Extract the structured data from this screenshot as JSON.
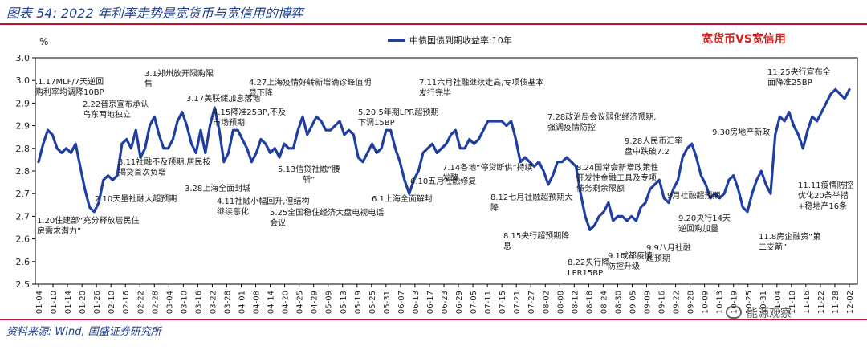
{
  "figure": {
    "title": "图表 54:  2022 年利率走势是宽货币与宽信用的博弈",
    "unit": "%",
    "legend_label": "中债国债到期收益率:10年",
    "subtitle": "宽货币VS宽信用",
    "source": "资料来源:  Wind, 国盛证券研究所",
    "watermark": "能源观察",
    "watermark_icon": "wechat-icon"
  },
  "colors": {
    "line": "#1f3fa0",
    "accent": "#c8102e",
    "subtitle": "#d91f1f"
  },
  "chart_data": {
    "type": "line",
    "ylim": [
      2.5,
      3.0
    ],
    "yticks": [
      "2.5",
      "2.6",
      "2.6",
      "2.7",
      "2.7",
      "2.8",
      "2.8",
      "2.9",
      "2.9",
      "3.0",
      "3.0"
    ],
    "xticks": [
      "01-04",
      "01-10",
      "01-14",
      "01-20",
      "01-26",
      "02-10",
      "02-16",
      "02-22",
      "02-28",
      "03-04",
      "03-10",
      "03-16",
      "03-22",
      "03-28",
      "04-01",
      "04-08",
      "04-14",
      "04-20",
      "04-25",
      "04-29",
      "05-09",
      "05-13",
      "05-19",
      "05-25",
      "05-31",
      "06-07",
      "06-13",
      "06-17",
      "06-23",
      "06-29",
      "07-05",
      "07-11",
      "07-15",
      "07-21",
      "07-27",
      "08-02",
      "08-08",
      "08-12",
      "08-18",
      "08-24",
      "08-30",
      "09-05",
      "09-09",
      "09-16",
      "09-22",
      "09-28",
      "10-09",
      "10-13",
      "10-19",
      "10-25",
      "10-31",
      "11-04",
      "11-10",
      "11-16",
      "11-22",
      "11-28",
      "12-02"
    ],
    "series": [
      {
        "name": "中债国债到期收益率:10年",
        "values": [
          2.77,
          2.81,
          2.84,
          2.83,
          2.8,
          2.79,
          2.8,
          2.79,
          2.81,
          2.76,
          2.71,
          2.67,
          2.66,
          2.68,
          2.73,
          2.74,
          2.73,
          2.74,
          2.81,
          2.82,
          2.8,
          2.84,
          2.78,
          2.8,
          2.85,
          2.87,
          2.83,
          2.8,
          2.8,
          2.82,
          2.86,
          2.88,
          2.85,
          2.81,
          2.79,
          2.84,
          2.79,
          2.85,
          2.89,
          2.84,
          2.77,
          2.79,
          2.84,
          2.84,
          2.82,
          2.8,
          2.77,
          2.79,
          2.82,
          2.81,
          2.79,
          2.8,
          2.78,
          2.81,
          2.8,
          2.8,
          2.84,
          2.87,
          2.83,
          2.85,
          2.87,
          2.86,
          2.84,
          2.84,
          2.85,
          2.86,
          2.83,
          2.84,
          2.83,
          2.78,
          2.77,
          2.79,
          2.81,
          2.79,
          2.8,
          2.84,
          2.84,
          2.8,
          2.77,
          2.73,
          2.7,
          2.73,
          2.75,
          2.79,
          2.8,
          2.81,
          2.79,
          2.8,
          2.81,
          2.83,
          2.84,
          2.8,
          2.8,
          2.82,
          2.81,
          2.82,
          2.84,
          2.86,
          2.86,
          2.86,
          2.86,
          2.85,
          2.86,
          2.82,
          2.77,
          2.78,
          2.77,
          2.76,
          2.77,
          2.75,
          2.72,
          2.74,
          2.77,
          2.77,
          2.78,
          2.77,
          2.76,
          2.7,
          2.65,
          2.62,
          2.63,
          2.65,
          2.66,
          2.68,
          2.64,
          2.65,
          2.65,
          2.64,
          2.65,
          2.64,
          2.67,
          2.68,
          2.71,
          2.72,
          2.73,
          2.69,
          2.68,
          2.71,
          2.73,
          2.78,
          2.8,
          2.81,
          2.78,
          2.74,
          2.72,
          2.69,
          2.7,
          2.69,
          2.7,
          2.73,
          2.74,
          2.71,
          2.67,
          2.66,
          2.7,
          2.73,
          2.75,
          2.72,
          2.7,
          2.83,
          2.87,
          2.86,
          2.88,
          2.85,
          2.83,
          2.8,
          2.84,
          2.87,
          2.86,
          2.88,
          2.9,
          2.92,
          2.93,
          2.92,
          2.91,
          2.93
        ]
      }
    ],
    "annotations": [
      {
        "text": ".1.17MLF/7天逆回\n购利率均调降10BP"
      },
      {
        "text": "2.22普京宣布承认\n乌东两地独立"
      },
      {
        "text": "3.1郑州放开限购限\n售"
      },
      {
        "text": "3.17美联储加息落地"
      },
      {
        "text": "4.15降准25BP,不及\n市场预期"
      },
      {
        "text": "4.27上海疫情好转新增确诊峰值明\n显下降"
      },
      {
        "text": "5.20 5年期LPR超预期\n下调15BP"
      },
      {
        "text": "7.11六月社融继续走高,专项债基本\n发行完毕"
      },
      {
        "text": "7.28政治局会议弱化经济预期,\n强调疫情防控"
      },
      {
        "text": "9.28人民币汇率\n盘中跌破7.2"
      },
      {
        "text": "9.30房地产新政"
      },
      {
        "text": "11.25央行宣布全\n面降准25BP"
      },
      {
        "text": "3.11社融不及预期,居民按\n揭贷首次负增"
      },
      {
        "text": "3.28上海全面封城"
      },
      {
        "text": "2.10天量社融大超预期"
      },
      {
        "text": "1.20住建部“充分释放居民住\n房需求潜力”"
      },
      {
        "text": "4.11社融小幅回升,但结构\n继续恶化"
      },
      {
        "text": "5.13信贷社融“腰\n斩”"
      },
      {
        "text": "5.25全国稳住经济大盘电视电话\n会议"
      },
      {
        "text": "6.1上海全面解封"
      },
      {
        "text": "6.10五月社融修复"
      },
      {
        "text": "7.14各地“停贷断供”持续\n发酵"
      },
      {
        "text": "8.12七月社融超预期大\n降"
      },
      {
        "text": "8.24国常会新增政策性\n开发性金融工具及专项\n债务剩余限额"
      },
      {
        "text": "9月社融超预期"
      },
      {
        "text": "9.20央行14天\n逆回购加量"
      },
      {
        "text": "8.15央行超预期降\n息"
      },
      {
        "text": "8.22央行降\nLPR15BP"
      },
      {
        "text": "9.1成都疫情\n防控升级"
      },
      {
        "text": "9.9八月社融\n超预期"
      },
      {
        "text": "11.11疫情防控\n优化20条举措\n+稳地产16条"
      },
      {
        "text": "11.8房企融资“第\n二支箭”"
      }
    ]
  }
}
